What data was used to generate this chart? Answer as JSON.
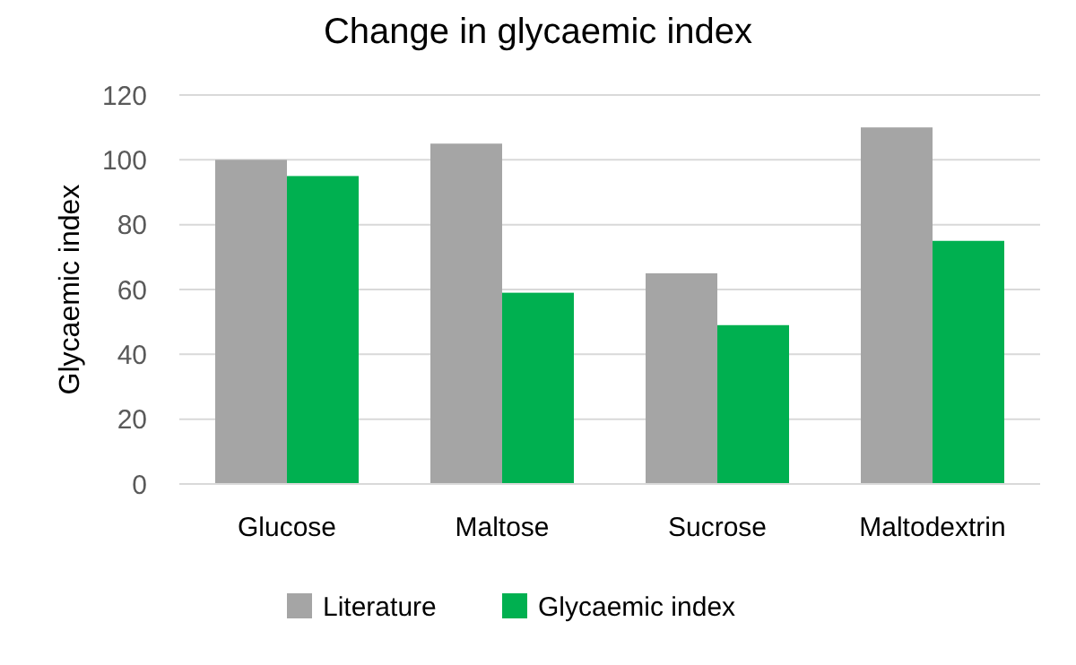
{
  "chart_data": {
    "type": "bar",
    "title": "Change in glycaemic index",
    "ylabel": "Glycaemic index",
    "categories": [
      "Glucose",
      "Maltose",
      "Sucrose",
      "Maltodextrin"
    ],
    "series": [
      {
        "name": "Literature",
        "color": "#a5a5a5",
        "values": [
          100,
          105,
          65,
          110
        ]
      },
      {
        "name": "Glycaemic index",
        "color": "#00b050",
        "values": [
          95,
          59,
          49,
          75
        ]
      }
    ],
    "ylim": [
      0,
      120
    ],
    "yticks": [
      0,
      20,
      40,
      60,
      80,
      100,
      120
    ],
    "grid": "y",
    "legend": "bottom"
  }
}
